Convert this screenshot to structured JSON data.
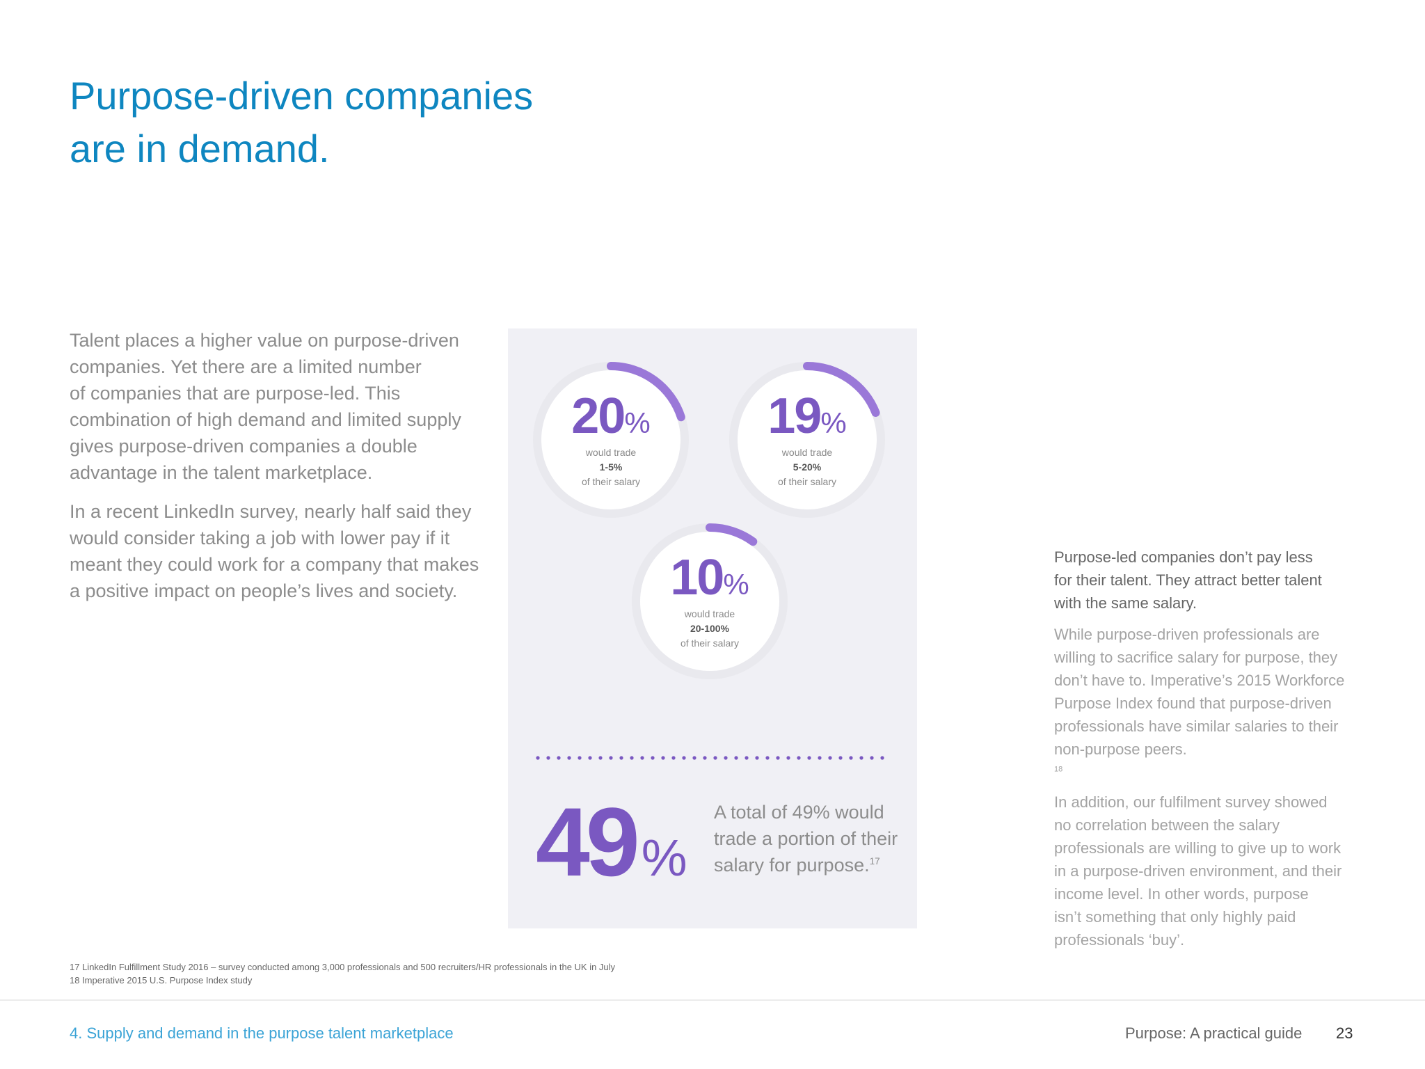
{
  "heading": {
    "line1": "Purpose-driven companies",
    "line2": "are in demand."
  },
  "intro": {
    "p1": [
      "Talent places a higher value on purpose-driven",
      "companies. Yet there are a limited number",
      "of companies that are purpose-led. This",
      "combination of high demand and limited supply",
      "gives purpose-driven companies a double",
      "advantage in the talent marketplace."
    ],
    "p2": [
      "In a recent LinkedIn survey, nearly half said they",
      "would consider taking a job with lower pay if it",
      "meant they could work for a company that makes",
      "a positive impact on people’s lives and society."
    ]
  },
  "stats": [
    {
      "value": "20",
      "unit": "%",
      "line1": "would trade",
      "range": "1-5%",
      "line3": "of their salary",
      "fraction": 0.2
    },
    {
      "value": "19",
      "unit": "%",
      "line1": "would trade",
      "range": "5-20%",
      "line3": "of their salary",
      "fraction": 0.19
    },
    {
      "value": "10",
      "unit": "%",
      "line1": "would trade",
      "range": "20-100%",
      "line3": "of their salary",
      "fraction": 0.1
    }
  ],
  "total": {
    "value": "49",
    "unit": "%",
    "caption_lines": [
      "A total of 49% would",
      "trade a portion of their",
      "salary for purpose."
    ],
    "footnote_ref": "17"
  },
  "right": {
    "lead": [
      "Purpose-led companies don’t pay less",
      "for their talent. They attract better talent",
      "with the same salary."
    ],
    "p1": [
      "While purpose-driven professionals are",
      "willing to sacrifice salary for purpose, they",
      "don’t have to. Imperative’s 2015 Workforce",
      "Purpose Index found that purpose-driven",
      "professionals have similar salaries to their",
      "non-purpose peers."
    ],
    "p1_ref": "18",
    "p2": [
      "In addition, our fulfilment survey showed",
      "no correlation between the salary",
      "professionals are willing to give up to work",
      "in a purpose-driven environment, and their",
      "income level. In other words, purpose",
      "isn’t something that only highly paid",
      "professionals ‘buy’."
    ]
  },
  "footnotes": [
    "17 LinkedIn Fulfillment Study 2016 – survey conducted among 3,000 professionals and 500 recruiters/HR professionals in the UK in July",
    "18 Imperative 2015 U.S. Purpose Index study"
  ],
  "footer": {
    "section": "4. Supply and demand in the purpose talent marketplace",
    "guide": "Purpose: A practical guide",
    "page": "23"
  },
  "colors": {
    "title_blue": "#0e86c0",
    "accent_purple": "#7a58c1",
    "arc_purple": "#9a78d8",
    "panel_bg": "#f0f0f5"
  }
}
